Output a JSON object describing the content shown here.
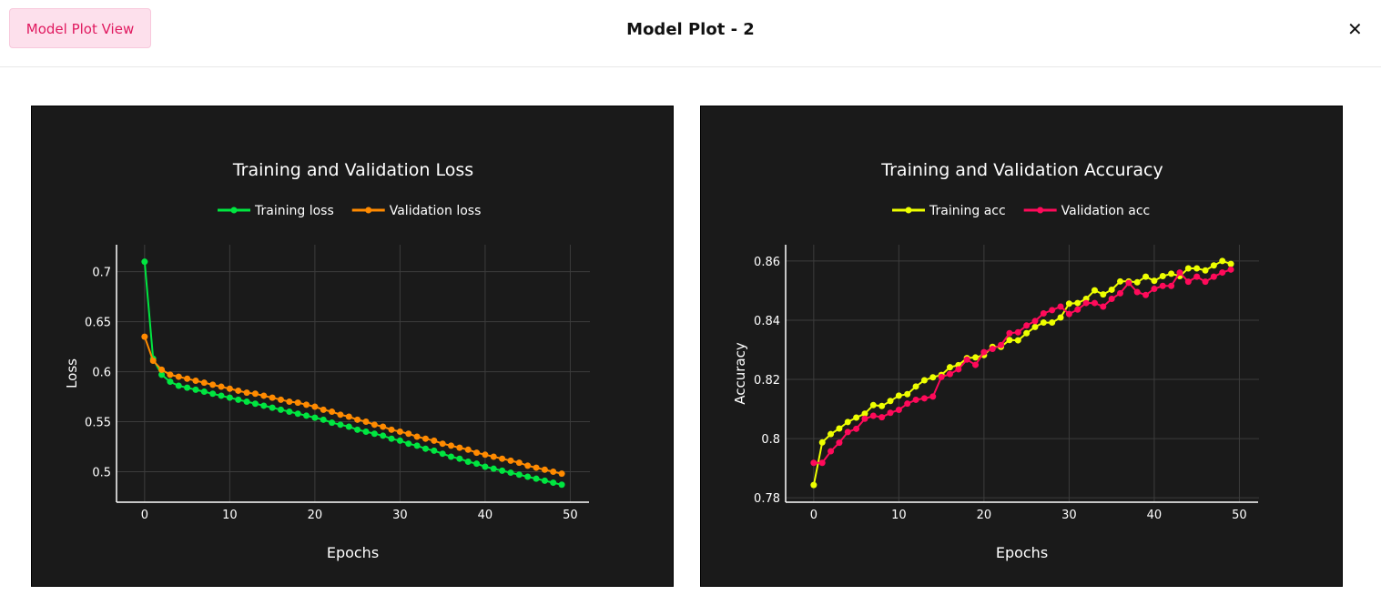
{
  "header": {
    "view_button": "Model Plot View",
    "title": "Model Plot - 2",
    "close_icon": "close-icon"
  },
  "chart_data": [
    {
      "type": "line",
      "title": "Training and Validation Loss",
      "xlabel": "Epochs",
      "ylabel": "Loss",
      "xlim": [
        -3.3,
        52.2
      ],
      "ylim": [
        0.4695,
        0.727
      ],
      "xticks": [
        0,
        10,
        20,
        30,
        40,
        50
      ],
      "yticks": [
        0.5,
        0.55,
        0.6,
        0.65,
        0.7
      ],
      "ytick_labels": [
        "0.5",
        "0.55",
        "0.6",
        "0.65",
        "0.7"
      ],
      "grid": true,
      "legend_position": "top-center",
      "x": [
        0,
        1,
        2,
        3,
        4,
        5,
        6,
        7,
        8,
        9,
        10,
        11,
        12,
        13,
        14,
        15,
        16,
        17,
        18,
        19,
        20,
        21,
        22,
        23,
        24,
        25,
        26,
        27,
        28,
        29,
        30,
        31,
        32,
        33,
        34,
        35,
        36,
        37,
        38,
        39,
        40,
        41,
        42,
        43,
        44,
        45,
        46,
        47,
        48,
        49
      ],
      "series": [
        {
          "name": "Training loss",
          "color": "#00e640",
          "values": [
            0.71,
            0.613,
            0.597,
            0.59,
            0.586,
            0.584,
            0.582,
            0.58,
            0.578,
            0.576,
            0.574,
            0.572,
            0.57,
            0.568,
            0.566,
            0.564,
            0.562,
            0.56,
            0.558,
            0.556,
            0.554,
            0.552,
            0.549,
            0.547,
            0.545,
            0.542,
            0.54,
            0.538,
            0.536,
            0.533,
            0.531,
            0.528,
            0.526,
            0.523,
            0.521,
            0.518,
            0.515,
            0.513,
            0.51,
            0.508,
            0.505,
            0.503,
            0.501,
            0.499,
            0.497,
            0.495,
            0.493,
            0.491,
            0.489,
            0.487
          ]
        },
        {
          "name": "Validation loss",
          "color": "#ff8a00",
          "values": [
            0.635,
            0.611,
            0.602,
            0.597,
            0.595,
            0.593,
            0.591,
            0.589,
            0.587,
            0.585,
            0.583,
            0.581,
            0.579,
            0.578,
            0.576,
            0.574,
            0.572,
            0.57,
            0.569,
            0.567,
            0.565,
            0.562,
            0.56,
            0.557,
            0.555,
            0.552,
            0.55,
            0.547,
            0.545,
            0.542,
            0.54,
            0.538,
            0.535,
            0.533,
            0.531,
            0.528,
            0.526,
            0.524,
            0.522,
            0.519,
            0.517,
            0.515,
            0.513,
            0.511,
            0.509,
            0.506,
            0.504,
            0.502,
            0.5,
            0.498
          ]
        }
      ]
    },
    {
      "type": "line",
      "title": "Training and Validation Accuracy",
      "xlabel": "Epochs",
      "ylabel": "Accuracy",
      "xlim": [
        -3.3,
        52.2
      ],
      "ylim": [
        0.7785,
        0.8655
      ],
      "xticks": [
        0,
        10,
        20,
        30,
        40,
        50
      ],
      "yticks": [
        0.78,
        0.8,
        0.82,
        0.84,
        0.86
      ],
      "ytick_labels": [
        "0.78",
        "0.8",
        "0.82",
        "0.84",
        "0.86"
      ],
      "grid": true,
      "legend_position": "top-center",
      "x": [
        0,
        1,
        2,
        3,
        4,
        5,
        6,
        7,
        8,
        9,
        10,
        11,
        12,
        13,
        14,
        15,
        16,
        17,
        18,
        19,
        20,
        21,
        22,
        23,
        24,
        25,
        26,
        27,
        28,
        29,
        30,
        31,
        32,
        33,
        34,
        35,
        36,
        37,
        38,
        39,
        40,
        41,
        42,
        43,
        44,
        45,
        46,
        47,
        48,
        49
      ],
      "series": [
        {
          "name": "Training acc",
          "color": "#eeff00",
          "values": [
            0.7843,
            0.7987,
            0.8015,
            0.8034,
            0.8056,
            0.8071,
            0.8084,
            0.8113,
            0.811,
            0.8127,
            0.8145,
            0.815,
            0.8176,
            0.8197,
            0.8207,
            0.8215,
            0.8241,
            0.8248,
            0.8272,
            0.8274,
            0.8282,
            0.831,
            0.831,
            0.8333,
            0.8332,
            0.8356,
            0.8377,
            0.8392,
            0.8392,
            0.8409,
            0.8456,
            0.8458,
            0.8472,
            0.8501,
            0.8487,
            0.8503,
            0.8531,
            0.8531,
            0.8528,
            0.8547,
            0.8533,
            0.8549,
            0.8557,
            0.8549,
            0.8575,
            0.8575,
            0.8568,
            0.8585,
            0.86,
            0.859
          ]
        },
        {
          "name": "Validation acc",
          "color": "#ff0a5a",
          "values": [
            0.7918,
            0.7918,
            0.7957,
            0.7986,
            0.8022,
            0.8033,
            0.8067,
            0.8077,
            0.8072,
            0.8087,
            0.8097,
            0.8118,
            0.8131,
            0.8136,
            0.8142,
            0.8208,
            0.8218,
            0.8234,
            0.8267,
            0.8249,
            0.8292,
            0.8303,
            0.8316,
            0.8356,
            0.8359,
            0.8382,
            0.8397,
            0.8423,
            0.8434,
            0.8446,
            0.8421,
            0.8436,
            0.8458,
            0.8458,
            0.8446,
            0.8472,
            0.8491,
            0.8526,
            0.8495,
            0.8485,
            0.8506,
            0.8516,
            0.8516,
            0.8561,
            0.853,
            0.8547,
            0.853,
            0.8547,
            0.8561,
            0.8571
          ]
        }
      ]
    }
  ]
}
